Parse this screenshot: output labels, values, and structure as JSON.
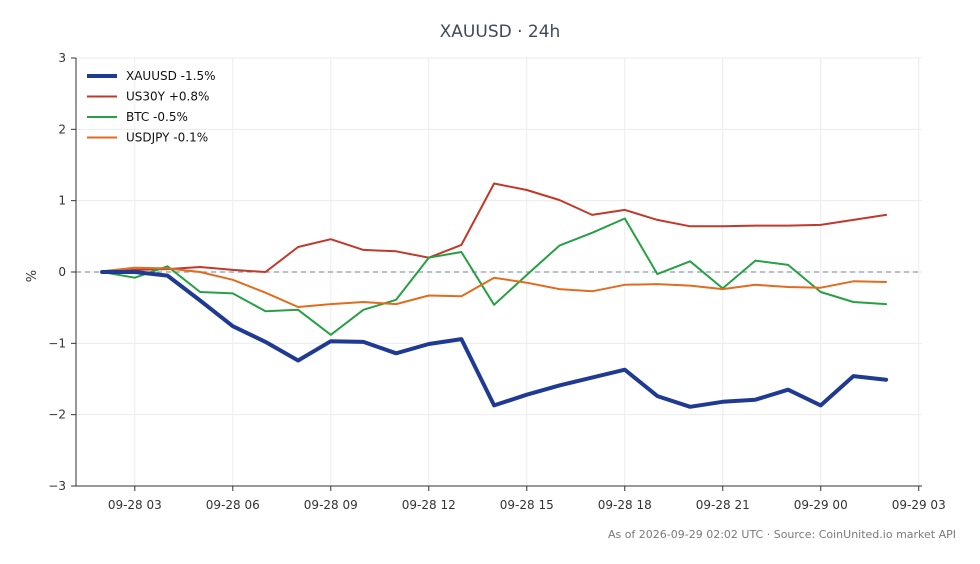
{
  "chart_data": {
    "type": "line",
    "title": "XAUUSD · 24h",
    "xlabel": "",
    "ylabel": "%",
    "ylim": [
      -3,
      3
    ],
    "y_ticks": [
      -3,
      -2,
      -1,
      0,
      1,
      2,
      3
    ],
    "y_tick_labels": [
      "−3",
      "−2",
      "−1",
      "0",
      "1",
      "2",
      "3"
    ],
    "xlim_hours": [
      1.2,
      27.1
    ],
    "x_ticks": [
      3,
      6,
      9,
      12,
      15,
      18,
      21,
      24,
      27
    ],
    "x_tick_labels": [
      "09-28 03",
      "09-28 06",
      "09-28 09",
      "09-28 12",
      "09-28 15",
      "09-28 18",
      "09-28 21",
      "09-29 00",
      "09-29 03"
    ],
    "x": [
      2,
      3,
      4,
      5,
      6,
      7,
      8,
      9,
      10,
      11,
      12,
      13,
      14,
      15,
      16,
      17,
      18,
      19,
      20,
      21,
      22,
      23,
      24,
      25,
      26
    ],
    "grid": true,
    "zero_line": true,
    "legend_position": "top-left",
    "series": [
      {
        "name": "XAUUSD -1.5%",
        "color": "#1f3a93",
        "width": 4,
        "values": [
          0.0,
          0.0,
          -0.05,
          -0.4,
          -0.76,
          -0.98,
          -1.24,
          -0.97,
          -0.98,
          -1.14,
          -1.01,
          -0.94,
          -1.87,
          -1.72,
          -1.59,
          -1.48,
          -1.37,
          -1.74,
          -1.89,
          -1.82,
          -1.79,
          -1.65,
          -1.87,
          -1.46,
          -1.51
        ]
      },
      {
        "name": "US30Y +0.8%",
        "color": "#c0392b",
        "width": 2,
        "values": [
          0.0,
          0.03,
          0.04,
          0.07,
          0.03,
          0.0,
          0.35,
          0.46,
          0.31,
          0.29,
          0.2,
          0.38,
          1.24,
          1.15,
          1.01,
          0.8,
          0.87,
          0.73,
          0.64,
          0.64,
          0.65,
          0.65,
          0.66,
          0.73,
          0.8
        ]
      },
      {
        "name": "BTC -0.5%",
        "color": "#27a045",
        "width": 2,
        "values": [
          0.0,
          -0.08,
          0.08,
          -0.28,
          -0.3,
          -0.55,
          -0.53,
          -0.88,
          -0.53,
          -0.39,
          0.2,
          0.28,
          -0.46,
          -0.04,
          0.37,
          0.55,
          0.75,
          -0.03,
          0.15,
          -0.23,
          0.16,
          0.1,
          -0.28,
          -0.42,
          -0.45
        ]
      },
      {
        "name": "USDJPY -0.1%",
        "color": "#e06c1f",
        "width": 2,
        "values": [
          0.01,
          0.06,
          0.05,
          0.0,
          -0.11,
          -0.29,
          -0.49,
          -0.45,
          -0.42,
          -0.45,
          -0.33,
          -0.34,
          -0.08,
          -0.15,
          -0.24,
          -0.27,
          -0.18,
          -0.17,
          -0.19,
          -0.24,
          -0.18,
          -0.21,
          -0.22,
          -0.13,
          -0.14
        ]
      }
    ]
  },
  "footnote": "As of 2026-09-29 02:02 UTC · Source: CoinUnited.io market API"
}
